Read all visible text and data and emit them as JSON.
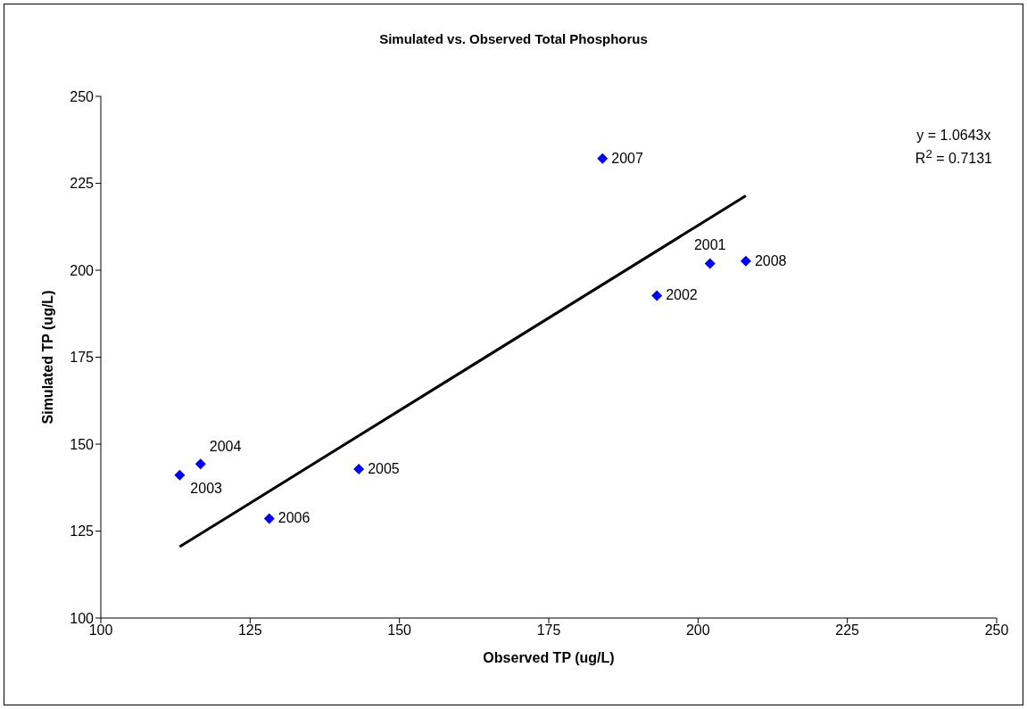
{
  "chart_data": {
    "type": "scatter",
    "title": "Simulated vs. Observed Total Phosphorus",
    "xlabel": "Observed TP (ug/L)",
    "ylabel": "Simulated TP (ug/L)",
    "xlim": [
      100,
      250
    ],
    "xticks": [
      100,
      125,
      150,
      175,
      200,
      225,
      250
    ],
    "ylim": [
      100,
      250
    ],
    "yticks": [
      100,
      125,
      150,
      175,
      200,
      225,
      250
    ],
    "grid": false,
    "legend": false,
    "series": [
      {
        "color": "#0000ff",
        "marker": "diamond",
        "x": [
          202.0,
          193.1,
          113.2,
          116.7,
          143.2,
          128.2,
          184.0,
          208.0
        ],
        "values": [
          201.9,
          192.7,
          141.1,
          144.3,
          142.8,
          128.6,
          232.1,
          202.6
        ]
      },
      {
        "type": "line",
        "color": "#000000",
        "marker": "none",
        "x": [
          113.2,
          208.0
        ],
        "values": [
          120.5,
          221.4
        ]
      }
    ],
    "annotations": [
      "y = 1.0643x",
      "R$^{2}$ = 0.7131",
      {
        "text": "2001",
        "x": 202.0,
        "y": 201.9
      },
      {
        "text": "2002",
        "x": 193.1,
        "y": 192.7
      },
      {
        "text": "2003",
        "x": 113.2,
        "y": 141.1
      },
      {
        "text": "2004",
        "x": 116.7,
        "y": 144.3
      },
      {
        "text": "2005",
        "x": 143.2,
        "y": 142.8
      },
      {
        "text": "2006",
        "x": 128.2,
        "y": 128.6
      },
      {
        "text": "2007",
        "x": 184.0,
        "y": 232.1
      },
      {
        "text": "2008",
        "x": 208.0,
        "y": 202.6
      }
    ]
  }
}
